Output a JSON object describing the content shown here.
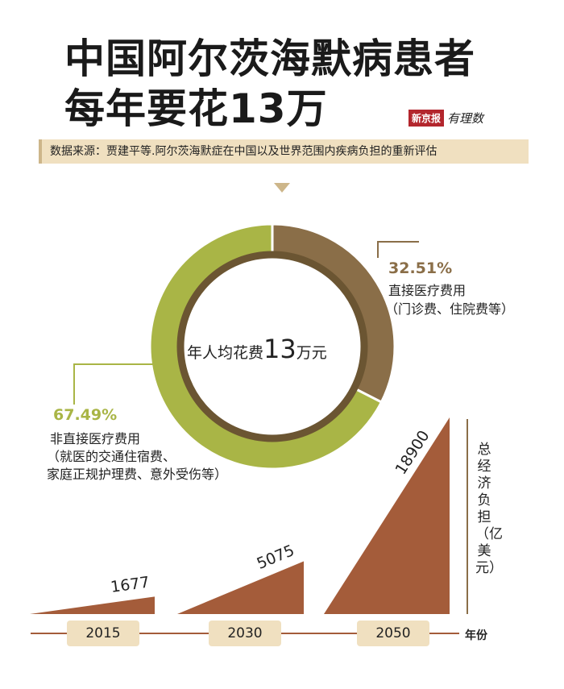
{
  "title_line1": "中国阿尔茨海默病患者",
  "title_line2": "每年要花13万",
  "brand": {
    "name": "新京报",
    "script": "有理数"
  },
  "source": "数据来源：贾建平等.阿尔茨海默症在中国以及世界范围内疾病负担的重新评估",
  "center": {
    "prefix": "年人均花费",
    "number": "13",
    "suffix": "万元"
  },
  "direct": {
    "pct": "32.51%",
    "label": "直接医疗费用",
    "note": "（门诊费、住院费等）"
  },
  "indirect": {
    "pct": "67.49%",
    "label": "非直接医疗费用",
    "note1": "（就医的交通住宿费、",
    "note2": "家庭正规护理费、意外受伤等）"
  },
  "colors": {
    "direct": "#8a6e48",
    "indirect": "#a9b546",
    "burden": "#a45c3a",
    "pill": "#f0e0c0",
    "inner_ring": "#6b5532"
  },
  "burden": {
    "axis_label": "总经济负担（亿美元）",
    "x_label": "年份"
  },
  "chart_data": [
    {
      "type": "pie",
      "title": "",
      "categories": [
        "直接医疗费用",
        "非直接医疗费用"
      ],
      "values": [
        32.51,
        67.49
      ],
      "center_label": "年人均花费13万元"
    },
    {
      "type": "area",
      "title": "",
      "categories": [
        "2015",
        "2030",
        "2050"
      ],
      "values": [
        1677,
        5075,
        18900
      ],
      "xlabel": "年份",
      "ylabel": "总经济负担（亿美元）",
      "labels": [
        "1677",
        "5075",
        "18900"
      ]
    }
  ]
}
